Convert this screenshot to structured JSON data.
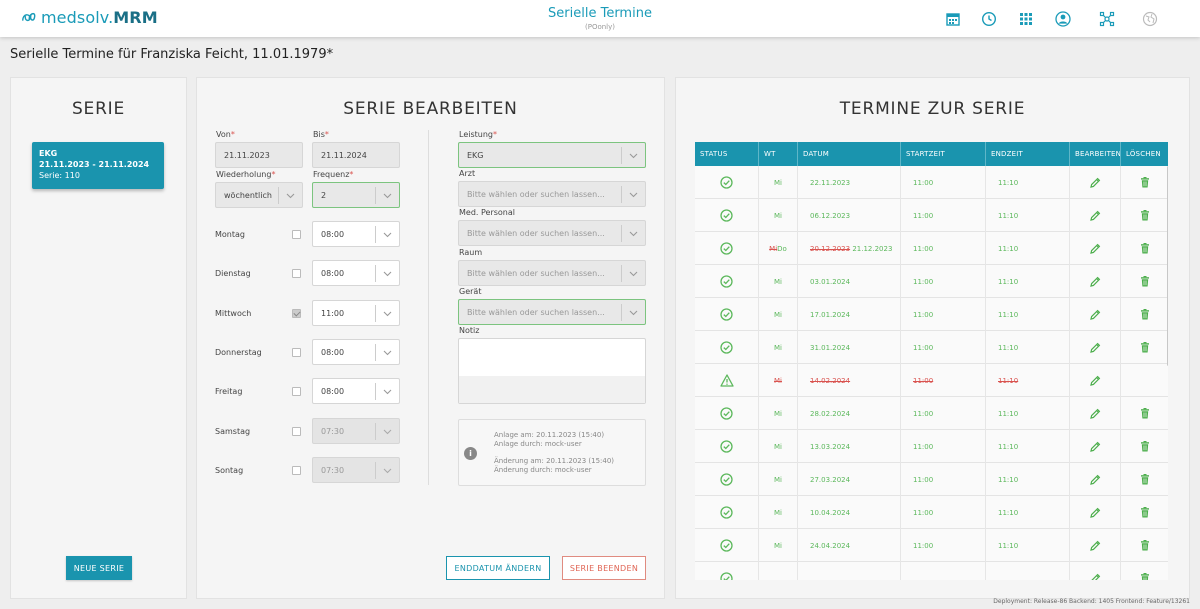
{
  "header": {
    "logo_brand": "medsolv.",
    "logo_product": "MRM",
    "title": "Serielle Termine",
    "subtitle": "(POonly)",
    "icons": [
      "calendar-icon",
      "clock-icon",
      "apps-grid-icon",
      "user-account-icon",
      "network-icon",
      "globe-icon"
    ]
  },
  "page_title": "Serielle Termine für Franziska Feicht, 11.01.1979*",
  "serie_panel": {
    "title": "SERIE",
    "card": {
      "name": "EKG",
      "range": "21.11.2023 - 21.11.2024",
      "serie": "Serie: 110"
    },
    "new_button": "NEUE SERIE"
  },
  "edit_panel": {
    "title": "SERIE BEARBEITEN",
    "von_label": "Von",
    "von_value": "21.11.2023",
    "bis_label": "Bis",
    "bis_value": "21.11.2024",
    "wiederholung_label": "Wiederholung",
    "wiederholung_value": "wöchentlich",
    "frequenz_label": "Frequenz",
    "frequenz_value": "2",
    "required_mark": "*",
    "days": [
      {
        "label": "Montag",
        "checked": false,
        "time": "08:00",
        "enabled": true
      },
      {
        "label": "Dienstag",
        "checked": false,
        "time": "08:00",
        "enabled": true
      },
      {
        "label": "Mittwoch",
        "checked": true,
        "time": "11:00",
        "enabled": true
      },
      {
        "label": "Donnerstag",
        "checked": false,
        "time": "08:00",
        "enabled": true
      },
      {
        "label": "Freitag",
        "checked": false,
        "time": "08:00",
        "enabled": true
      },
      {
        "label": "Samstag",
        "checked": false,
        "time": "07:30",
        "enabled": false
      },
      {
        "label": "Sontag",
        "checked": false,
        "time": "07:30",
        "enabled": false
      }
    ],
    "leistung_label": "Leistung",
    "leistung_value": "EKG",
    "arzt_label": "Arzt",
    "arzt_placeholder": "Bitte wählen oder suchen lassen...",
    "personal_label": "Med. Personal",
    "personal_placeholder": "Bitte wählen oder suchen lassen...",
    "raum_label": "Raum",
    "raum_placeholder": "Bitte wählen oder suchen lassen...",
    "geraet_label": "Gerät",
    "geraet_placeholder": "Bitte wählen oder suchen lassen...",
    "notiz_label": "Notiz",
    "info": {
      "anlage_am": "Anlage am: 20.11.2023 (15:40)",
      "anlage_durch": "Anlage durch: mock-user",
      "aenderung_am": "Änderung am: 20.11.2023 (15:40)",
      "aenderung_durch": "Änderung durch: mock-user"
    },
    "enddatum_button": "ENDDATUM ÄNDERN",
    "beenden_button": "SERIE BEENDEN"
  },
  "termine_panel": {
    "title": "TERMINE ZUR SERIE",
    "columns": [
      "STATUS",
      "WT",
      "DATUM",
      "STARTZEIT",
      "ENDZEIT",
      "BEARBEITEN",
      "LÖSCHEN"
    ],
    "rows": [
      {
        "status": "ok",
        "wt": "Mi",
        "datum": "22.11.2023",
        "start": "11:00",
        "end": "11:10",
        "deletable": true
      },
      {
        "status": "ok",
        "wt": "Mi",
        "datum": "06.12.2023",
        "start": "11:00",
        "end": "11:10",
        "deletable": true
      },
      {
        "status": "ok",
        "wt_old": "Mi",
        "wt": "Do",
        "datum_old": "20.12.2023",
        "datum": "21.12.2023",
        "start": "11:00",
        "end": "11:10",
        "deletable": true
      },
      {
        "status": "ok",
        "wt": "Mi",
        "datum": "03.01.2024",
        "start": "11:00",
        "end": "11:10",
        "deletable": true
      },
      {
        "status": "ok",
        "wt": "Mi",
        "datum": "17.01.2024",
        "start": "11:00",
        "end": "11:10",
        "deletable": true
      },
      {
        "status": "ok",
        "wt": "Mi",
        "datum": "31.01.2024",
        "start": "11:00",
        "end": "11:10",
        "deletable": true
      },
      {
        "status": "warning",
        "cancelled": true,
        "wt": "Mi",
        "datum": "14.02.2024",
        "start": "11:00",
        "end": "11:10",
        "deletable": false
      },
      {
        "status": "ok",
        "wt": "Mi",
        "datum": "28.02.2024",
        "start": "11:00",
        "end": "11:10",
        "deletable": true
      },
      {
        "status": "ok",
        "wt": "Mi",
        "datum": "13.03.2024",
        "start": "11:00",
        "end": "11:10",
        "deletable": true
      },
      {
        "status": "ok",
        "wt": "Mi",
        "datum": "27.03.2024",
        "start": "11:00",
        "end": "11:10",
        "deletable": true
      },
      {
        "status": "ok",
        "wt": "Mi",
        "datum": "10.04.2024",
        "start": "11:00",
        "end": "11:10",
        "deletable": true
      },
      {
        "status": "ok",
        "wt": "Mi",
        "datum": "24.04.2024",
        "start": "11:00",
        "end": "11:10",
        "deletable": true
      },
      {
        "status": "ok",
        "wt": "",
        "datum": "",
        "start": "",
        "end": "",
        "deletable": true
      }
    ]
  },
  "footer": "Deployment: Release-86   Backend: 1405   Frontend: Feature/13261",
  "colors": {
    "accent": "#1a94ae",
    "ok": "#5cb85c",
    "error": "#d9534f"
  }
}
